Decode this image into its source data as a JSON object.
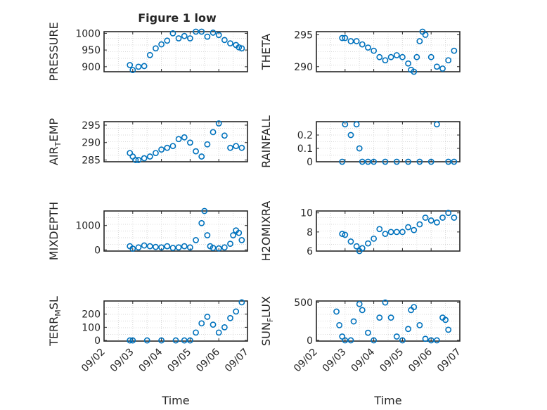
{
  "figure": {
    "title": "Figure 1 low",
    "marker_color": "#0072BD",
    "axis_color": "#262626",
    "grid_color": "#d9d9d9",
    "time_ticks": [
      "09/02",
      "09/03",
      "09/04",
      "09/05",
      "09/06",
      "09/07"
    ],
    "time_label": "Time"
  },
  "chart_data": [
    {
      "type": "scatter",
      "marker": "open-circle",
      "grid": true,
      "ylabel": "PRESSURE",
      "ylim": [
        885,
        1005
      ],
      "yticks": [
        900,
        950,
        1000
      ],
      "xlim": [
        0,
        5
      ],
      "x": [
        0.9,
        1.0,
        1.2,
        1.4,
        1.6,
        1.8,
        2.0,
        2.2,
        2.4,
        2.6,
        2.8,
        3.0,
        3.2,
        3.4,
        3.6,
        3.8,
        4.0,
        4.2,
        4.4,
        4.6,
        4.7,
        4.8
      ],
      "values": [
        905,
        890,
        900,
        902,
        935,
        955,
        967,
        978,
        1000,
        985,
        992,
        985,
        1005,
        1005,
        990,
        1002,
        995,
        980,
        970,
        965,
        958,
        955
      ]
    },
    {
      "type": "scatter",
      "marker": "open-circle",
      "grid": true,
      "ylabel": "THETA",
      "ylim": [
        289.2,
        295.5
      ],
      "yticks": [
        290,
        295
      ],
      "xlim": [
        0,
        5
      ],
      "x": [
        0.9,
        1.0,
        1.2,
        1.4,
        1.6,
        1.8,
        2.0,
        2.2,
        2.4,
        2.6,
        2.8,
        3.0,
        3.2,
        3.3,
        3.4,
        3.5,
        3.6,
        3.7,
        3.8,
        4.0,
        4.2,
        4.4,
        4.6,
        4.8
      ],
      "values": [
        294.5,
        294.5,
        294,
        294,
        293.5,
        293,
        292.5,
        291.5,
        291,
        291.5,
        291.8,
        291.5,
        290.5,
        289.5,
        289.2,
        291.5,
        294,
        295.5,
        295,
        291.5,
        290,
        289.7,
        291,
        292.5
      ]
    },
    {
      "type": "scatter",
      "marker": "open-circle",
      "grid": true,
      "ylabel": "AIR_TEMP",
      "ylim": [
        284.5,
        296
      ],
      "yticks": [
        285,
        290,
        295
      ],
      "xlim": [
        0,
        5
      ],
      "x": [
        0.9,
        1.0,
        1.1,
        1.2,
        1.4,
        1.6,
        1.8,
        2.0,
        2.2,
        2.4,
        2.6,
        2.8,
        3.0,
        3.2,
        3.4,
        3.6,
        3.8,
        4.0,
        4.2,
        4.4,
        4.6,
        4.8
      ],
      "values": [
        287,
        286,
        285,
        285,
        285.5,
        286,
        287,
        288,
        288.5,
        289,
        291,
        291.5,
        290,
        287.5,
        286,
        289.5,
        293,
        295.5,
        292,
        288.5,
        289,
        288.5
      ]
    },
    {
      "type": "scatter",
      "marker": "open-circle",
      "grid": true,
      "ylabel": "RAINFALL",
      "ylim": [
        0,
        0.3
      ],
      "yticks": [
        0,
        0.1,
        0.2
      ],
      "xlim": [
        0,
        5
      ],
      "x": [
        0.9,
        1.0,
        1.2,
        1.4,
        1.5,
        1.6,
        1.8,
        2.0,
        2.4,
        2.8,
        3.2,
        3.6,
        4.0,
        4.2,
        4.6,
        4.8
      ],
      "values": [
        0,
        0.28,
        0.2,
        0.28,
        0.1,
        0,
        0,
        0,
        0,
        0,
        0,
        0,
        0,
        0.28,
        0,
        0
      ]
    },
    {
      "type": "scatter",
      "marker": "open-circle",
      "grid": true,
      "ylabel": "MIXDEPTH",
      "ylim": [
        -50,
        1600
      ],
      "yticks": [
        0,
        1000
      ],
      "xlim": [
        0,
        5
      ],
      "x": [
        0.9,
        1.0,
        1.2,
        1.4,
        1.6,
        1.8,
        2.0,
        2.2,
        2.4,
        2.6,
        2.8,
        3.0,
        3.2,
        3.4,
        3.5,
        3.6,
        3.7,
        3.8,
        4.0,
        4.2,
        4.4,
        4.5,
        4.6,
        4.7,
        4.8
      ],
      "values": [
        150,
        50,
        100,
        180,
        150,
        120,
        100,
        150,
        80,
        100,
        150,
        100,
        400,
        1100,
        1600,
        600,
        150,
        80,
        60,
        100,
        250,
        600,
        800,
        700,
        400
      ]
    },
    {
      "type": "scatter",
      "marker": "open-circle",
      "grid": true,
      "ylabel": "H2OMIXRA",
      "ylim": [
        6,
        10.2
      ],
      "yticks": [
        6,
        8,
        10
      ],
      "xlim": [
        0,
        5
      ],
      "x": [
        0.9,
        1.0,
        1.2,
        1.4,
        1.5,
        1.6,
        1.8,
        2.0,
        2.2,
        2.4,
        2.6,
        2.8,
        3.0,
        3.2,
        3.4,
        3.6,
        3.8,
        4.0,
        4.2,
        4.4,
        4.6,
        4.8
      ],
      "values": [
        7.8,
        7.7,
        7,
        6.5,
        6,
        6.3,
        6.8,
        7.3,
        8.3,
        7.8,
        8,
        8,
        8,
        8.5,
        8.2,
        8.8,
        9.5,
        9.2,
        9.0,
        9.5,
        10,
        9.5
      ]
    },
    {
      "type": "scatter",
      "marker": "open-circle",
      "grid": true,
      "ylabel": "TERR_MSL",
      "ylim": [
        -5,
        300
      ],
      "yticks": [
        0,
        100,
        200
      ],
      "xlim": [
        0,
        5
      ],
      "x": [
        0.9,
        1.0,
        1.5,
        2.0,
        2.5,
        2.8,
        3.0,
        3.2,
        3.4,
        3.6,
        3.8,
        4.0,
        4.2,
        4.4,
        4.6,
        4.8
      ],
      "values": [
        0,
        0,
        0,
        0,
        0,
        0,
        0,
        60,
        130,
        180,
        120,
        60,
        100,
        170,
        220,
        290
      ]
    },
    {
      "type": "scatter",
      "marker": "open-circle",
      "grid": true,
      "ylabel": "SUN_FLUX",
      "ylim": [
        -10,
        520
      ],
      "yticks": [
        0,
        500
      ],
      "xlim": [
        0,
        5
      ],
      "x": [
        0.7,
        0.8,
        0.9,
        1.0,
        1.2,
        1.3,
        1.5,
        1.6,
        1.8,
        2.0,
        2.2,
        2.4,
        2.6,
        2.8,
        3.0,
        3.2,
        3.3,
        3.4,
        3.6,
        3.8,
        4.0,
        4.2,
        4.4,
        4.5,
        4.6
      ],
      "values": [
        380,
        200,
        50,
        0,
        0,
        250,
        480,
        400,
        100,
        0,
        300,
        500,
        300,
        50,
        0,
        150,
        400,
        440,
        200,
        20,
        0,
        0,
        300,
        270,
        140
      ]
    }
  ]
}
